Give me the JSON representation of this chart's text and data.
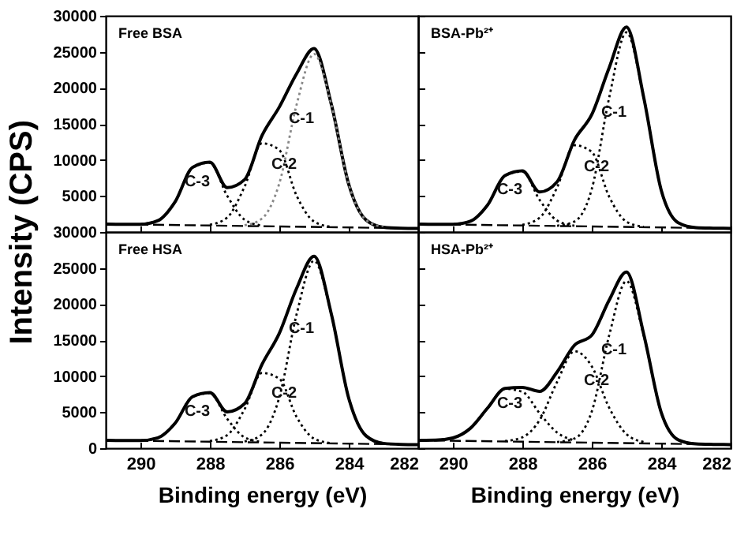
{
  "chart_data": [
    {
      "type": "line",
      "title": "Free BSA",
      "ylabel": "Intensity (CPS)",
      "xlim": [
        291,
        282
      ],
      "xticks": [
        290,
        288,
        286,
        284,
        282
      ],
      "ylim": [
        0,
        30000
      ],
      "yticks": [
        {
          "value": 0,
          "label": null
        },
        5000,
        10000,
        15000,
        20000,
        25000,
        30000
      ],
      "tick_labels": "y",
      "series": [
        {
          "color": "#000000",
          "line_style": "solid",
          "x": [
            282,
            282.5,
            283,
            283.5,
            284,
            284.5,
            285,
            285.5,
            286,
            286.5,
            287,
            287.5,
            288,
            288.5,
            289,
            289.5,
            290,
            290.5,
            291
          ],
          "values": [
            500,
            530,
            660,
            1660,
            6610,
            17680,
            25450,
            21980,
            17340,
            13370,
            7265,
            6150,
            9700,
            8960,
            4210,
            1570,
            1070,
            1070,
            1100
          ]
        },
        {
          "color": "#888888",
          "line_style": "dotted",
          "x": [
            283,
            283.5,
            284,
            284.5,
            285,
            285.5,
            286,
            286.5,
            287
          ],
          "values": [
            660,
            1660,
            6610,
            17640,
            24700,
            17700,
            6740,
            1860,
            930
          ]
        },
        {
          "color": "#000000",
          "line_style": "dotted",
          "x": [
            284.5,
            285,
            285.5,
            286,
            286.5,
            287,
            287.5,
            288
          ],
          "values": [
            710,
            1450,
            5010,
            11370,
            12310,
            6300,
            2010,
            1010
          ]
        },
        {
          "color": "#000000",
          "line_style": "dotted",
          "x": [
            286.5,
            287,
            287.5,
            288,
            288.5,
            289,
            289.5,
            290
          ],
          "values": [
            880,
            1700,
            5010,
            9600,
            8950,
            4210,
            1570,
            1070
          ]
        },
        {
          "color": "#000000",
          "line_style": "dashed",
          "x": [
            282,
            291
          ],
          "values": [
            500,
            1100
          ]
        }
      ],
      "annotations": [
        {
          "text": "C-1",
          "x": 285.5,
          "y": 17700
        },
        {
          "text": "C-2",
          "x": 286,
          "y": 11370
        },
        {
          "text": "C-3",
          "x": 288.5,
          "y": 8950
        }
      ]
    },
    {
      "type": "line",
      "title": "BSA-Pb²⁺",
      "xlim": [
        291,
        282
      ],
      "xticks": [
        290,
        288,
        286,
        284,
        282
      ],
      "ylim": [
        0,
        30000
      ],
      "yticks": [
        0,
        5000,
        10000,
        15000,
        20000,
        25000,
        30000
      ],
      "tick_labels": false,
      "series": [
        {
          "color": "#000000",
          "line_style": "solid",
          "x": [
            282,
            282.5,
            283,
            283.5,
            284,
            284.5,
            285,
            285.5,
            286,
            286.5,
            287,
            287.5,
            288,
            288.5,
            289,
            289.5,
            290,
            290.5,
            291
          ],
          "values": [
            500,
            530,
            600,
            1250,
            5810,
            18580,
            28430,
            22780,
            16290,
            12750,
            6950,
            5550,
            8490,
            7830,
            3750,
            1490,
            1060,
            1070,
            1100
          ]
        },
        {
          "color": "#000000",
          "line_style": "dotted",
          "x": [
            283,
            283.5,
            284,
            284.5,
            285,
            285.5,
            286,
            286.5,
            287
          ],
          "values": [
            600,
            1250,
            5810,
            18540,
            27700,
            18610,
            5950,
            1450,
            870
          ]
        },
        {
          "color": "#000000",
          "line_style": "dotted",
          "x": [
            284.5,
            285,
            285.5,
            286,
            286.5,
            287,
            287.5,
            288
          ],
          "values": [
            710,
            1430,
            4910,
            11110,
            12030,
            6170,
            1990,
            1000
          ]
        },
        {
          "color": "#000000",
          "line_style": "dotted",
          "x": [
            286.5,
            287,
            287.5,
            288,
            288.5,
            289,
            289.5,
            290
          ],
          "values": [
            870,
            1580,
            4430,
            8390,
            7830,
            3750,
            1490,
            1060
          ]
        },
        {
          "color": "#000000",
          "line_style": "dashed",
          "x": [
            282,
            291
          ],
          "values": [
            500,
            1100
          ]
        }
      ],
      "annotations": [
        {
          "text": "C-1",
          "x": 285.5,
          "y": 18610
        },
        {
          "text": "C-2",
          "x": 286,
          "y": 11110
        },
        {
          "text": "C-3",
          "x": 288.5,
          "y": 7830
        }
      ]
    },
    {
      "type": "line",
      "title": "Free HSA",
      "xlabel": "Binding energy (eV)",
      "xlim": [
        291,
        282
      ],
      "xticks": [
        290,
        288,
        286,
        284,
        282
      ],
      "ylim": [
        0,
        30000
      ],
      "yticks": [
        0,
        5000,
        10000,
        15000,
        20000,
        25000,
        30000
      ],
      "series": [
        {
          "color": "#000000",
          "line_style": "solid",
          "x": [
            282,
            282.5,
            283,
            283.5,
            284,
            284.5,
            285,
            285.5,
            286,
            286.5,
            287,
            287.5,
            288,
            288.5,
            289,
            289.5,
            290,
            290.5,
            291
          ],
          "values": [
            500,
            530,
            670,
            1710,
            6930,
            18590,
            26630,
            22200,
            15950,
            11610,
            6180,
            5030,
            7730,
            7140,
            3480,
            1440,
            1060,
            1070,
            1100
          ]
        },
        {
          "color": "#000000",
          "line_style": "dotted",
          "x": [
            283,
            283.5,
            284,
            284.5,
            285,
            285.5,
            286,
            286.5,
            287
          ],
          "values": [
            670,
            1710,
            6930,
            18560,
            26000,
            18620,
            7070,
            1910,
            930
          ]
        },
        {
          "color": "#000000",
          "line_style": "dotted",
          "x": [
            284.5,
            285,
            285.5,
            286,
            286.5,
            287,
            287.5,
            288
          ],
          "values": [
            700,
            1330,
            4310,
            9650,
            10440,
            5410,
            1830,
            990
          ]
        },
        {
          "color": "#000000",
          "line_style": "dotted",
          "x": [
            286.5,
            287,
            287.5,
            288,
            288.5,
            289,
            289.5,
            290
          ],
          "values": [
            860,
            1500,
            4070,
            7640,
            7140,
            3480,
            1440,
            1060
          ]
        },
        {
          "color": "#000000",
          "line_style": "dashed",
          "x": [
            282,
            291
          ],
          "values": [
            500,
            1100
          ]
        }
      ],
      "annotations": [
        {
          "text": "C-1",
          "x": 285.5,
          "y": 18620
        },
        {
          "text": "C-2",
          "x": 286,
          "y": 9650
        },
        {
          "text": "C-3",
          "x": 288.5,
          "y": 7140
        }
      ]
    },
    {
      "type": "line",
      "title": "HSA-Pb²⁺",
      "xlabel": "Binding energy (eV)",
      "xlim": [
        291,
        282
      ],
      "xticks": [
        290,
        288,
        286,
        284,
        282
      ],
      "ylim": [
        0,
        30000
      ],
      "yticks": [
        0,
        5000,
        10000,
        15000,
        20000,
        25000,
        30000
      ],
      "tick_labels": "x",
      "series": [
        {
          "color": "#000000",
          "line_style": "solid",
          "x": [
            282,
            282.5,
            283,
            283.5,
            284,
            284.5,
            285,
            285.5,
            286,
            286.5,
            287,
            287.5,
            288,
            288.5,
            289,
            289.5,
            290,
            290.5,
            291
          ],
          "values": [
            500,
            530,
            600,
            1140,
            4970,
            15750,
            24450,
            20530,
            15680,
            14270,
            10570,
            7880,
            8440,
            8300,
            5580,
            2750,
            1430,
            1120,
            1100
          ]
        },
        {
          "color": "#000000",
          "line_style": "dotted",
          "x": [
            283,
            283.5,
            284,
            284.5,
            285,
            285.5,
            286,
            286.5,
            287
          ],
          "values": [
            600,
            1140,
            4950,
            15570,
            23200,
            15630,
            5090,
            1340,
            860
          ]
        },
        {
          "color": "#000000",
          "line_style": "dotted",
          "x": [
            284.5,
            285,
            285.5,
            286,
            286.5,
            287,
            287.5,
            288,
            288.5
          ],
          "values": [
            850,
            1950,
            5630,
            11360,
            13450,
            9190,
            3920,
            1510,
            1000
          ]
        },
        {
          "color": "#000000",
          "line_style": "dotted",
          "x": [
            286.5,
            287,
            287.5,
            288,
            288.5,
            289,
            289.5,
            290,
            290.5
          ],
          "values": [
            1080,
            2180,
            4830,
            7830,
            8230,
            5580,
            2750,
            1430,
            1120
          ]
        },
        {
          "color": "#000000",
          "line_style": "dashed",
          "x": [
            282,
            291
          ],
          "values": [
            500,
            1100
          ]
        }
      ],
      "annotations": [
        {
          "text": "C-1",
          "x": 285.5,
          "y": 15630
        },
        {
          "text": "C-2",
          "x": 286,
          "y": 11360
        },
        {
          "text": "C-3",
          "x": 288.5,
          "y": 8230
        }
      ]
    }
  ]
}
